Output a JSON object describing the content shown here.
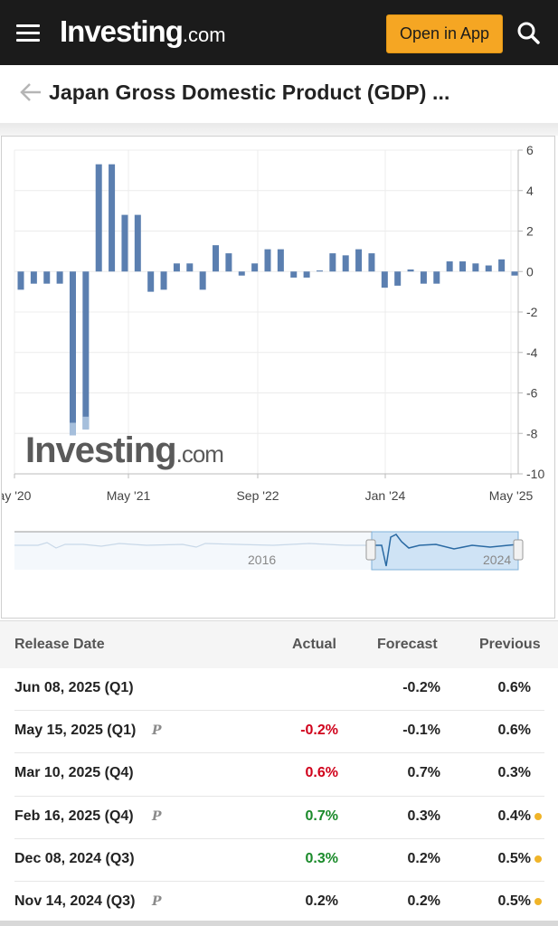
{
  "header": {
    "logo_main": "Investing",
    "logo_suffix": ".com",
    "open_app_label": "Open in App"
  },
  "page": {
    "title": "Japan Gross Domestic Product (GDP) ..."
  },
  "watermark": {
    "main": "Investing",
    "suffix": ".com"
  },
  "colors": {
    "bar": "#5b7fb0",
    "bar_faded": "#a6bfdc",
    "negative": "#d0021b",
    "positive": "#1a8a2a",
    "dot": "#f0b429",
    "accent": "#f5a623"
  },
  "chart_data": {
    "type": "bar",
    "x_tick_labels": [
      "ay '20",
      "May '21",
      "Sep '22",
      "Jan '24",
      "May '25"
    ],
    "y_tick_labels": [
      "6",
      "4",
      "2",
      "0",
      "-2",
      "-4",
      "-6",
      "-8",
      "-10"
    ],
    "ylim": [
      -10,
      6
    ],
    "grid": true,
    "values": [
      -0.9,
      -0.6,
      -0.6,
      -0.6,
      -8.1,
      -7.8,
      5.3,
      5.3,
      2.8,
      2.8,
      -1.0,
      -0.9,
      0.4,
      0.4,
      -0.9,
      1.3,
      0.9,
      -0.2,
      0.4,
      1.1,
      1.1,
      -0.3,
      -0.3,
      0.05,
      0.9,
      0.8,
      1.1,
      0.9,
      -0.8,
      -0.7,
      0.1,
      -0.6,
      -0.6,
      0.5,
      0.5,
      0.4,
      0.3,
      0.6,
      -0.2
    ],
    "navigator_labels": [
      "2016",
      "2024"
    ]
  },
  "table": {
    "headers": [
      "Release Date",
      "Actual",
      "Forecast",
      "Previous"
    ],
    "rows": [
      {
        "date": "Jun 08, 2025 (Q1)",
        "prelim": false,
        "actual": "",
        "actual_color": "neutral",
        "forecast": "-0.2%",
        "previous": "0.6%",
        "dot": false
      },
      {
        "date": "May 15, 2025 (Q1)",
        "prelim": true,
        "actual": "-0.2%",
        "actual_color": "negative",
        "forecast": "-0.1%",
        "previous": "0.6%",
        "dot": false
      },
      {
        "date": "Mar 10, 2025 (Q4)",
        "prelim": false,
        "actual": "0.6%",
        "actual_color": "negative",
        "forecast": "0.7%",
        "previous": "0.3%",
        "dot": false
      },
      {
        "date": "Feb 16, 2025 (Q4)",
        "prelim": true,
        "actual": "0.7%",
        "actual_color": "positive",
        "forecast": "0.3%",
        "previous": "0.4%",
        "dot": true
      },
      {
        "date": "Dec 08, 2024 (Q3)",
        "prelim": false,
        "actual": "0.3%",
        "actual_color": "positive",
        "forecast": "0.2%",
        "previous": "0.5%",
        "dot": true
      },
      {
        "date": "Nov 14, 2024 (Q3)",
        "prelim": true,
        "actual": "0.2%",
        "actual_color": "neutral",
        "forecast": "0.2%",
        "previous": "0.5%",
        "dot": true
      }
    ],
    "prelim_badge": "P"
  }
}
